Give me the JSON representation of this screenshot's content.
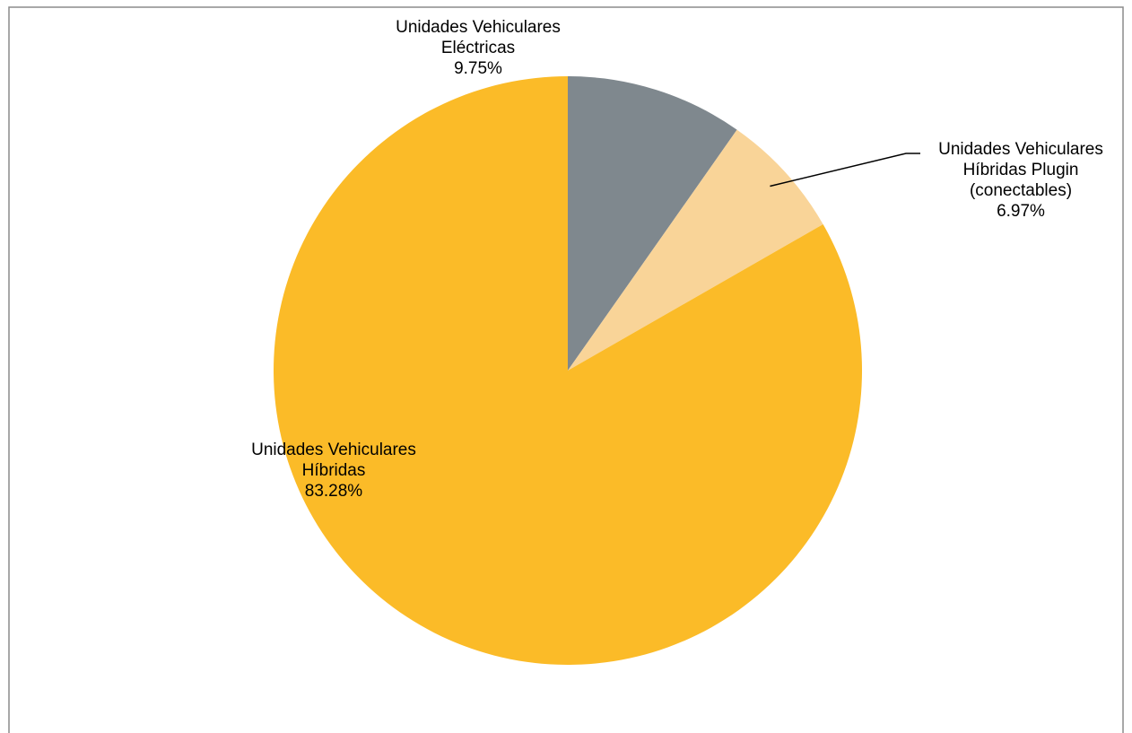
{
  "chart_data": {
    "type": "pie",
    "start_angle_deg": 0,
    "direction": "clockwise",
    "slices": [
      {
        "label_lines": [
          "Unidades Vehiculares",
          "Eléctricas"
        ],
        "value": 9.75,
        "value_text": "9.75%",
        "color": "#7f888e"
      },
      {
        "label_lines": [
          "Unidades Vehiculares",
          "Híbridas Plugin",
          "(conectables)"
        ],
        "value": 6.97,
        "value_text": "6.97%",
        "color": "#f9d498"
      },
      {
        "label_lines": [
          "Unidades Vehiculares",
          "Híbridas"
        ],
        "value": 83.28,
        "value_text": "83.28%",
        "color": "#fbbb28"
      }
    ],
    "legend": "none"
  }
}
